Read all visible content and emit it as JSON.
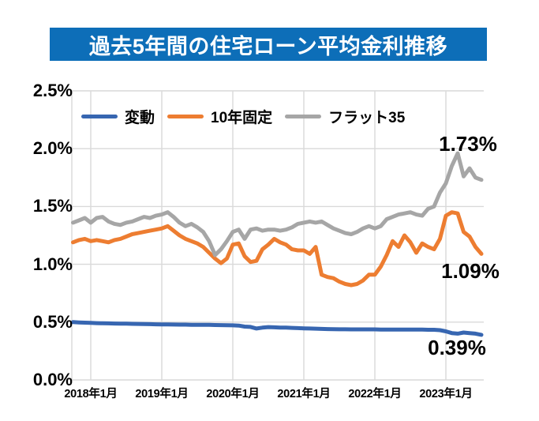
{
  "title": "過去5年間の住宅ローン平均金利推移",
  "colors": {
    "banner_background": "#0D6EB8",
    "title_text": "#FFFFFF",
    "gridline": "#D9D9D9",
    "axis_text": "#000000",
    "background": "#FFFFFF"
  },
  "chart_data": {
    "type": "line",
    "title": "過去5年間の住宅ローン平均金利推移",
    "xlabel": "",
    "ylabel": "",
    "ylim": [
      0,
      2.5
    ],
    "y_ticks": [
      "2.5%",
      "2.0%",
      "1.5%",
      "1.0%",
      "0.5%",
      "0.0%"
    ],
    "x_ticks": [
      "2018年1月",
      "2019年1月",
      "2020年1月",
      "2021年1月",
      "2022年1月",
      "2023年1月"
    ],
    "x_tick_indices": [
      3,
      15,
      27,
      39,
      51,
      63
    ],
    "x_unit": "month",
    "points_per_series": 70,
    "grid": true,
    "legend_position": "top-inside",
    "series": [
      {
        "name": "変動",
        "color": "#3766B1",
        "values": [
          0.5,
          0.497,
          0.495,
          0.493,
          0.491,
          0.49,
          0.489,
          0.488,
          0.487,
          0.486,
          0.485,
          0.484,
          0.483,
          0.482,
          0.481,
          0.48,
          0.48,
          0.479,
          0.478,
          0.478,
          0.477,
          0.477,
          0.476,
          0.476,
          0.475,
          0.474,
          0.473,
          0.472,
          0.47,
          0.461,
          0.458,
          0.445,
          0.452,
          0.457,
          0.455,
          0.453,
          0.452,
          0.45,
          0.448,
          0.446,
          0.445,
          0.443,
          0.441,
          0.44,
          0.439,
          0.438,
          0.438,
          0.437,
          0.437,
          0.437,
          0.437,
          0.437,
          0.436,
          0.436,
          0.436,
          0.436,
          0.435,
          0.435,
          0.435,
          0.435,
          0.434,
          0.434,
          0.43,
          0.42,
          0.405,
          0.4,
          0.41,
          0.405,
          0.4,
          0.39
        ]
      },
      {
        "name": "10年固定",
        "color": "#ED7D31",
        "values": [
          1.19,
          1.21,
          1.22,
          1.2,
          1.21,
          1.2,
          1.19,
          1.21,
          1.22,
          1.24,
          1.26,
          1.27,
          1.28,
          1.29,
          1.3,
          1.31,
          1.33,
          1.29,
          1.25,
          1.22,
          1.2,
          1.18,
          1.15,
          1.1,
          1.05,
          1.01,
          1.05,
          1.17,
          1.18,
          1.07,
          1.02,
          1.03,
          1.13,
          1.17,
          1.22,
          1.19,
          1.17,
          1.13,
          1.12,
          1.12,
          1.09,
          1.15,
          0.91,
          0.89,
          0.88,
          0.85,
          0.83,
          0.82,
          0.83,
          0.86,
          0.91,
          0.91,
          0.98,
          1.08,
          1.2,
          1.15,
          1.25,
          1.19,
          1.1,
          1.18,
          1.15,
          1.13,
          1.22,
          1.42,
          1.45,
          1.44,
          1.28,
          1.24,
          1.15,
          1.09
        ]
      },
      {
        "name": "フラット35",
        "color": "#A6A6A6",
        "values": [
          1.36,
          1.38,
          1.4,
          1.36,
          1.4,
          1.41,
          1.37,
          1.35,
          1.34,
          1.36,
          1.37,
          1.39,
          1.41,
          1.4,
          1.42,
          1.43,
          1.45,
          1.41,
          1.36,
          1.33,
          1.35,
          1.32,
          1.28,
          1.2,
          1.08,
          1.13,
          1.2,
          1.28,
          1.3,
          1.22,
          1.3,
          1.31,
          1.29,
          1.3,
          1.3,
          1.29,
          1.3,
          1.32,
          1.35,
          1.36,
          1.37,
          1.36,
          1.37,
          1.34,
          1.31,
          1.29,
          1.27,
          1.26,
          1.28,
          1.31,
          1.33,
          1.31,
          1.33,
          1.39,
          1.41,
          1.43,
          1.44,
          1.45,
          1.43,
          1.42,
          1.48,
          1.5,
          1.62,
          1.7,
          1.85,
          1.96,
          1.76,
          1.83,
          1.75,
          1.73
        ]
      }
    ],
    "annotations": [
      {
        "text": "1.73%",
        "series": "フラット35"
      },
      {
        "text": "1.09%",
        "series": "10年固定"
      },
      {
        "text": "0.39%",
        "series": "変動"
      }
    ]
  }
}
